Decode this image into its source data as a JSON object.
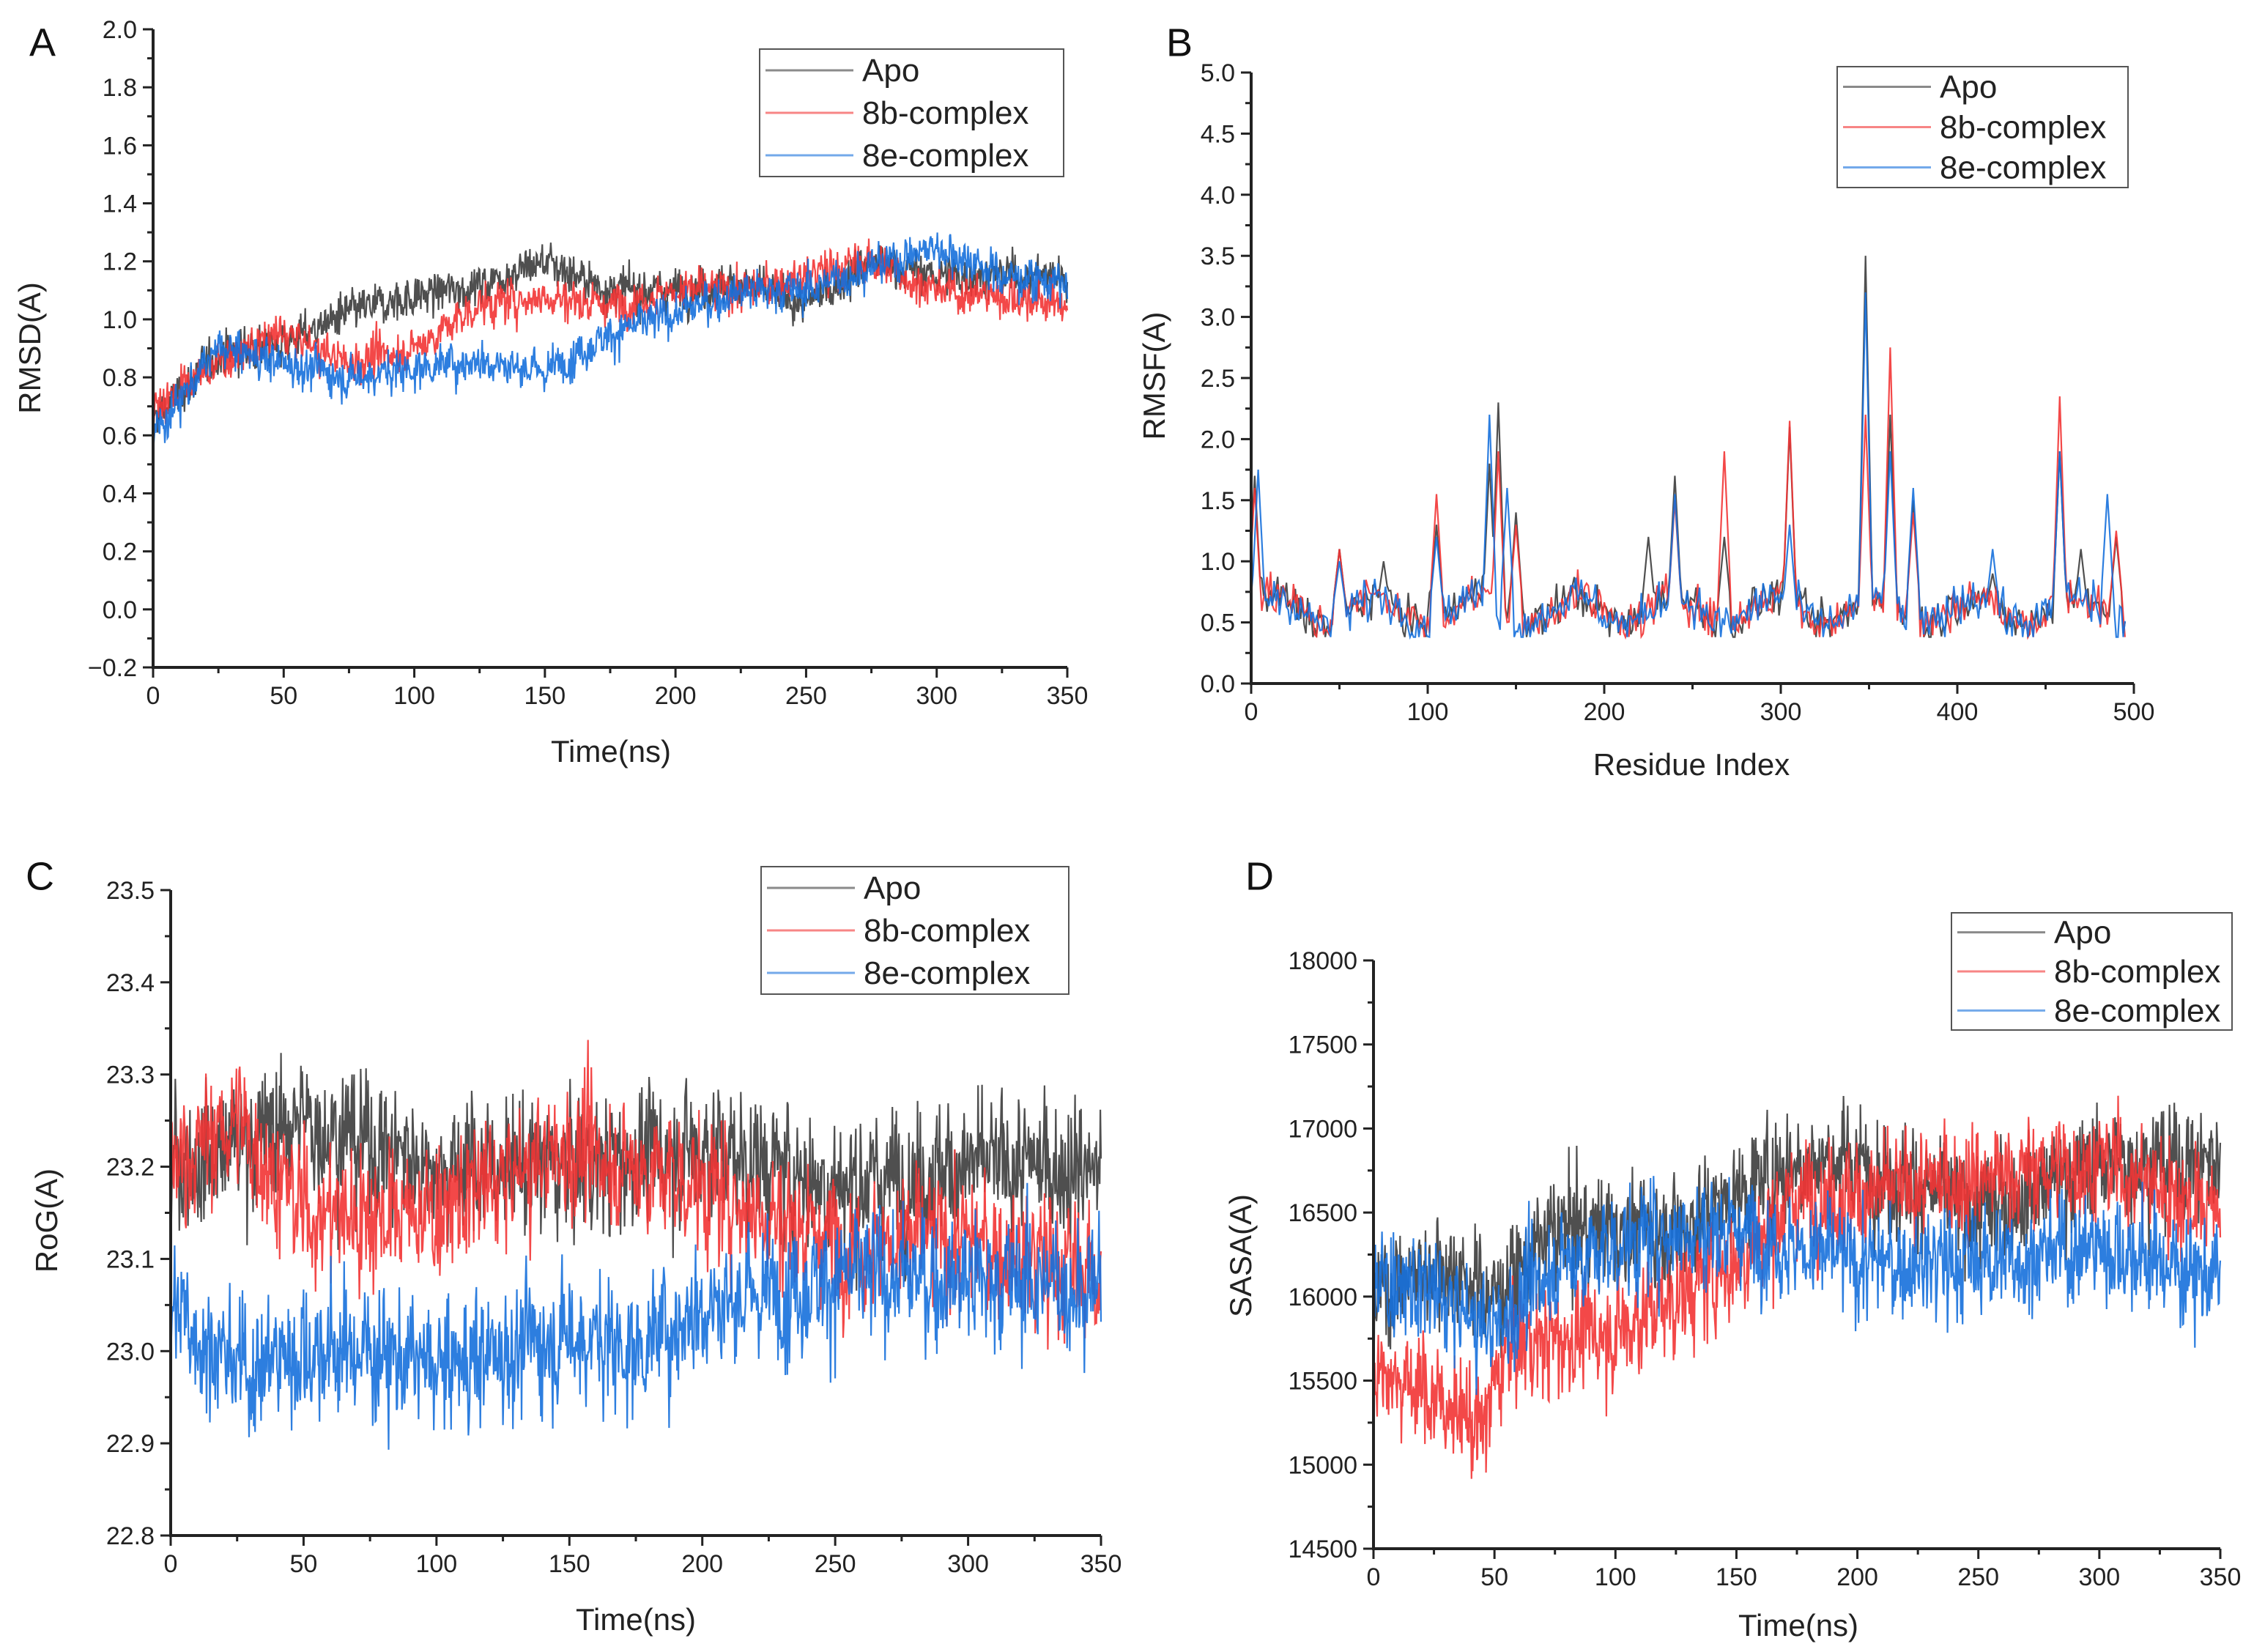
{
  "colors": {
    "Apo": "#3c3c3c",
    "8b-complex": "#f23434",
    "8e-complex": "#1670dc"
  },
  "chart_data": [
    {
      "panel": "A",
      "type": "line",
      "xlabel": "Time(ns)",
      "ylabel": "RMSD(A)",
      "xlim": [
        0,
        350
      ],
      "ylim": [
        -0.2,
        2.0
      ],
      "xticks": [
        0,
        50,
        100,
        150,
        200,
        250,
        300,
        350
      ],
      "yticks": [
        -0.2,
        0.0,
        0.2,
        0.4,
        0.6,
        0.8,
        1.0,
        1.2,
        1.4,
        1.6,
        1.8,
        2.0
      ],
      "ydec": 1,
      "legend": "top-right",
      "noise": 0.05,
      "points": 1400,
      "series": [
        {
          "name": "Apo",
          "trend": [
            [
              0,
              0.65
            ],
            [
              25,
              0.88
            ],
            [
              50,
              0.92
            ],
            [
              75,
              1.02
            ],
            [
              100,
              1.08
            ],
            [
              125,
              1.12
            ],
            [
              150,
              1.2
            ],
            [
              175,
              1.1
            ],
            [
              200,
              1.1
            ],
            [
              225,
              1.12
            ],
            [
              250,
              1.05
            ],
            [
              275,
              1.2
            ],
            [
              300,
              1.15
            ],
            [
              325,
              1.15
            ],
            [
              350,
              1.15
            ]
          ]
        },
        {
          "name": "8b-complex",
          "trend": [
            [
              0,
              0.7
            ],
            [
              25,
              0.85
            ],
            [
              50,
              0.95
            ],
            [
              75,
              0.85
            ],
            [
              100,
              0.9
            ],
            [
              125,
              1.05
            ],
            [
              150,
              1.08
            ],
            [
              175,
              1.05
            ],
            [
              200,
              1.1
            ],
            [
              225,
              1.1
            ],
            [
              250,
              1.15
            ],
            [
              275,
              1.2
            ],
            [
              300,
              1.1
            ],
            [
              325,
              1.08
            ],
            [
              350,
              1.05
            ]
          ]
        },
        {
          "name": "8e-complex",
          "trend": [
            [
              0,
              0.6
            ],
            [
              25,
              0.9
            ],
            [
              50,
              0.85
            ],
            [
              75,
              0.8
            ],
            [
              100,
              0.83
            ],
            [
              125,
              0.86
            ],
            [
              150,
              0.82
            ],
            [
              175,
              0.95
            ],
            [
              200,
              1.02
            ],
            [
              225,
              1.1
            ],
            [
              250,
              1.1
            ],
            [
              275,
              1.18
            ],
            [
              300,
              1.25
            ],
            [
              325,
              1.15
            ],
            [
              350,
              1.12
            ]
          ]
        }
      ]
    },
    {
      "panel": "B",
      "type": "line",
      "xlabel": "Residue Index",
      "ylabel": "RMSF(A)",
      "xlim": [
        0,
        500
      ],
      "ylim": [
        0,
        5.0
      ],
      "xticks": [
        0,
        100,
        200,
        300,
        400,
        500
      ],
      "yticks": [
        0.0,
        0.5,
        1.0,
        1.5,
        2.0,
        2.5,
        3.0,
        3.5,
        4.0,
        4.5,
        5.0
      ],
      "ydec": 1,
      "legend": "top-right",
      "baseline": 0.6,
      "noise": 0.12,
      "xmax_data": 495,
      "series": [
        {
          "name": "Apo",
          "peaks": [
            [
              2,
              1.7
            ],
            [
              50,
              1.1
            ],
            [
              75,
              1.0
            ],
            [
              105,
              1.3
            ],
            [
              135,
              1.8
            ],
            [
              140,
              2.3
            ],
            [
              150,
              1.4
            ],
            [
              225,
              1.2
            ],
            [
              240,
              1.7
            ],
            [
              268,
              1.2
            ],
            [
              305,
              2.1
            ],
            [
              348,
              3.5
            ],
            [
              362,
              2.2
            ],
            [
              375,
              1.5
            ],
            [
              420,
              0.9
            ],
            [
              458,
              1.9
            ],
            [
              470,
              1.1
            ],
            [
              490,
              1.2
            ]
          ]
        },
        {
          "name": "8b-complex",
          "peaks": [
            [
              2,
              1.6
            ],
            [
              50,
              1.1
            ],
            [
              105,
              1.55
            ],
            [
              140,
              1.9
            ],
            [
              150,
              1.3
            ],
            [
              240,
              1.5
            ],
            [
              268,
              1.9
            ],
            [
              305,
              2.15
            ],
            [
              348,
              2.2
            ],
            [
              362,
              2.75
            ],
            [
              375,
              1.4
            ],
            [
              458,
              2.35
            ],
            [
              490,
              1.25
            ]
          ]
        },
        {
          "name": "8e-complex",
          "peaks": [
            [
              4,
              1.75
            ],
            [
              50,
              1.0
            ],
            [
              105,
              1.2
            ],
            [
              135,
              2.2
            ],
            [
              145,
              1.6
            ],
            [
              240,
              1.55
            ],
            [
              305,
              1.3
            ],
            [
              348,
              3.2
            ],
            [
              362,
              1.9
            ],
            [
              375,
              1.6
            ],
            [
              420,
              1.1
            ],
            [
              458,
              1.9
            ],
            [
              485,
              1.55
            ]
          ]
        }
      ]
    },
    {
      "panel": "C",
      "type": "line",
      "xlabel": "Time(ns)",
      "ylabel": "RoG(A)",
      "xlim": [
        0,
        350
      ],
      "ylim": [
        22.8,
        23.5
      ],
      "xticks": [
        0,
        50,
        100,
        150,
        200,
        250,
        300,
        350
      ],
      "yticks": [
        22.8,
        22.9,
        23.0,
        23.1,
        23.2,
        23.3,
        23.4,
        23.5
      ],
      "ydec": 1,
      "legend": "top-right",
      "noise": 0.05,
      "points": 1400,
      "series": [
        {
          "name": "Apo",
          "trend": [
            [
              0,
              23.2
            ],
            [
              50,
              23.25
            ],
            [
              100,
              23.2
            ],
            [
              150,
              23.2
            ],
            [
              200,
              23.22
            ],
            [
              250,
              23.18
            ],
            [
              300,
              23.2
            ],
            [
              350,
              23.2
            ]
          ]
        },
        {
          "name": "8b-complex",
          "trend": [
            [
              0,
              23.2
            ],
            [
              25,
              23.25
            ],
            [
              50,
              23.15
            ],
            [
              75,
              23.15
            ],
            [
              100,
              23.15
            ],
            [
              150,
              23.22
            ],
            [
              200,
              23.18
            ],
            [
              250,
              23.12
            ],
            [
              300,
              23.12
            ],
            [
              350,
              23.08
            ]
          ]
        },
        {
          "name": "8e-complex",
          "trend": [
            [
              0,
              23.05
            ],
            [
              25,
              22.98
            ],
            [
              50,
              23.0
            ],
            [
              75,
              23.0
            ],
            [
              100,
              22.98
            ],
            [
              125,
              23.0
            ],
            [
              150,
              23.02
            ],
            [
              175,
              23.0
            ],
            [
              200,
              23.05
            ],
            [
              250,
              23.08
            ],
            [
              300,
              23.08
            ],
            [
              350,
              23.07
            ]
          ]
        }
      ]
    },
    {
      "panel": "D",
      "type": "line",
      "xlabel": "Time(ns)",
      "ylabel": "SASA(A)",
      "xlim": [
        0,
        350
      ],
      "ylim": [
        14500,
        18000
      ],
      "xticks": [
        0,
        50,
        100,
        150,
        200,
        250,
        300,
        350
      ],
      "yticks": [
        14500,
        15000,
        15500,
        16000,
        16500,
        17000,
        17500,
        18000
      ],
      "ydec": 0,
      "legend": "top-right",
      "noise": 220,
      "points": 1400,
      "series": [
        {
          "name": "Apo",
          "trend": [
            [
              0,
              16000
            ],
            [
              25,
              16200
            ],
            [
              50,
              16000
            ],
            [
              75,
              16400
            ],
            [
              100,
              16400
            ],
            [
              125,
              16400
            ],
            [
              150,
              16600
            ],
            [
              175,
              16800
            ],
            [
              200,
              16800
            ],
            [
              250,
              16500
            ],
            [
              300,
              16800
            ],
            [
              350,
              16800
            ]
          ]
        },
        {
          "name": "8b-complex",
          "trend": [
            [
              0,
              15600
            ],
            [
              25,
              15400
            ],
            [
              45,
              15200
            ],
            [
              55,
              15700
            ],
            [
              100,
              15800
            ],
            [
              150,
              16200
            ],
            [
              175,
              16600
            ],
            [
              200,
              16600
            ],
            [
              250,
              16700
            ],
            [
              300,
              16800
            ],
            [
              350,
              16500
            ]
          ]
        },
        {
          "name": "8e-complex",
          "trend": [
            [
              0,
              16100
            ],
            [
              25,
              16000
            ],
            [
              50,
              15800
            ],
            [
              75,
              16200
            ],
            [
              100,
              16300
            ],
            [
              125,
              16400
            ],
            [
              150,
              16400
            ],
            [
              175,
              16300
            ],
            [
              200,
              16200
            ],
            [
              250,
              16200
            ],
            [
              300,
              16300
            ],
            [
              350,
              16100
            ]
          ]
        }
      ]
    }
  ]
}
